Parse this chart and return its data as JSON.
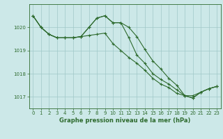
{
  "x": [
    0,
    1,
    2,
    3,
    4,
    5,
    6,
    7,
    8,
    9,
    10,
    11,
    12,
    13,
    14,
    15,
    16,
    17,
    18,
    19,
    20,
    21,
    22,
    23
  ],
  "line1": [
    1020.5,
    1020.0,
    1019.7,
    1019.55,
    1019.55,
    1019.55,
    1019.6,
    1020.0,
    1020.4,
    1020.5,
    1020.2,
    1020.2,
    1020.0,
    1019.6,
    1019.05,
    1018.55,
    1018.2,
    1017.8,
    1017.5,
    1017.05,
    1017.05,
    1017.2,
    1017.35,
    1017.45
  ],
  "line2": [
    1020.5,
    1020.0,
    1019.7,
    1019.55,
    1019.55,
    1019.55,
    1019.6,
    1020.0,
    1020.4,
    1020.5,
    1020.2,
    1020.2,
    1019.55,
    1018.8,
    1018.45,
    1018.0,
    1017.75,
    1017.55,
    1017.3,
    1017.05,
    1016.95,
    1017.2,
    1017.35,
    1017.45
  ],
  "line3": [
    1020.5,
    1020.0,
    1019.7,
    1019.55,
    1019.55,
    1019.55,
    1019.6,
    1019.65,
    1019.7,
    1019.75,
    1019.3,
    1019.0,
    1018.7,
    1018.45,
    1018.15,
    1017.8,
    1017.55,
    1017.4,
    1017.15,
    1017.05,
    1016.95,
    1017.2,
    1017.35,
    1017.45
  ],
  "bg_color": "#cce8e8",
  "line_color": "#2d6a2d",
  "grid_color": "#a0c8c8",
  "xlabel": "Graphe pression niveau de la mer (hPa)",
  "ylim": [
    1016.5,
    1021.0
  ],
  "xlim": [
    -0.5,
    23.5
  ],
  "yticks": [
    1017,
    1018,
    1019,
    1020
  ],
  "xticks": [
    0,
    1,
    2,
    3,
    4,
    5,
    6,
    7,
    8,
    9,
    10,
    11,
    12,
    13,
    14,
    15,
    16,
    17,
    18,
    19,
    20,
    21,
    22,
    23
  ]
}
